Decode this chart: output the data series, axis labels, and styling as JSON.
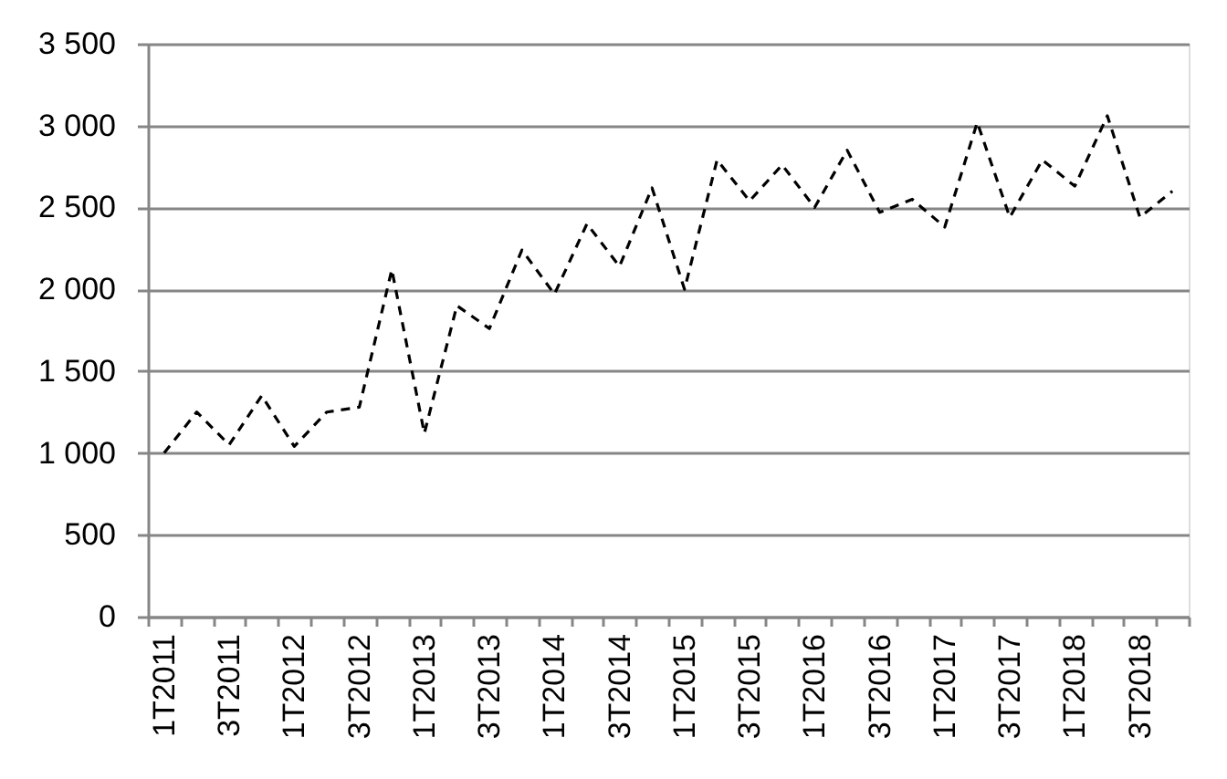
{
  "chart_data": {
    "type": "line",
    "categories": [
      "1T2011",
      null,
      "3T2011",
      null,
      "1T2012",
      null,
      "3T2012",
      null,
      "1T2013",
      null,
      "3T2013",
      null,
      "1T2014",
      null,
      "3T2014",
      null,
      "1T2015",
      null,
      "3T2015",
      null,
      "1T2016",
      null,
      "3T2016",
      null,
      "1T2017",
      null,
      "3T2017",
      null,
      "1T2018",
      null,
      "3T2018",
      null
    ],
    "series": [
      {
        "color": "#000000",
        "values": [
          1000,
          1250,
          1050,
          1350,
          1040,
          1250,
          1280,
          2120,
          1120,
          1900,
          1760,
          2240,
          1970,
          2400,
          2140,
          2620,
          2000,
          2790,
          2540,
          2760,
          2500,
          2850,
          2470,
          2550,
          2380,
          3020,
          2440,
          2790,
          2630,
          3060,
          2440,
          2600
        ]
      }
    ],
    "ylim": [
      0,
      3500
    ],
    "yticks": [
      0,
      500,
      {
        "value": 1000,
        "label": "1 000"
      },
      {
        "value": 1500,
        "label": "1 500"
      },
      {
        "value": 2000,
        "label": "2 000"
      },
      {
        "value": 2500,
        "label": "2 500"
      },
      {
        "value": 3000,
        "label": "3 000"
      },
      {
        "value": 3500,
        "label": "3 500"
      }
    ],
    "grid": "y",
    "line_style": "dashed"
  }
}
